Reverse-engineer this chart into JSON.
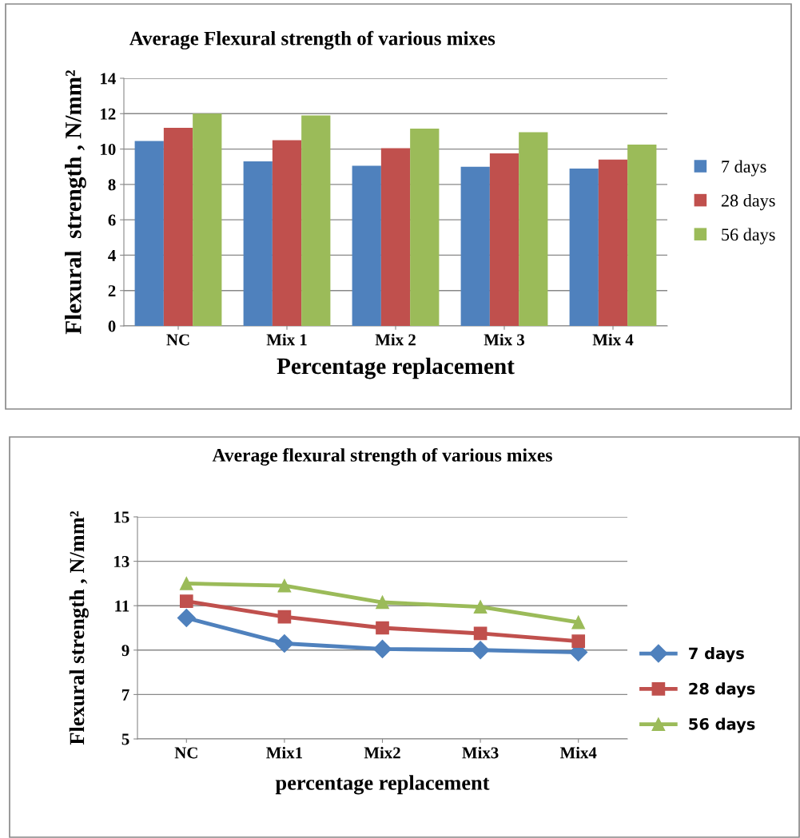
{
  "chart_data": [
    {
      "type": "bar",
      "title": "Average Flexural strength of various mixes",
      "xlabel": "Percentage replacement",
      "ylabel": "Flexural  strength , N/mm²",
      "categories": [
        "NC",
        "Mix 1",
        "Mix 2",
        "Mix 3",
        "Mix 4"
      ],
      "series": [
        {
          "name": "7 days",
          "color": "#4f81bd",
          "values": [
            10.45,
            9.3,
            9.05,
            9.0,
            8.9
          ]
        },
        {
          "name": "28 days",
          "color": "#c0504d",
          "values": [
            11.2,
            10.5,
            10.05,
            9.75,
            9.4
          ]
        },
        {
          "name": "56 days",
          "color": "#9bbb59",
          "values": [
            12.0,
            11.9,
            11.15,
            10.95,
            10.25
          ]
        }
      ],
      "ylim": [
        0,
        14
      ],
      "yticks": [
        0,
        2,
        4,
        6,
        8,
        10,
        12,
        14
      ],
      "grid": "y",
      "legend": "right"
    },
    {
      "type": "line",
      "title": "Average flexural strength of various mixes",
      "xlabel": "percentage replacement",
      "ylabel": "Flexural strength , N/mm²",
      "categories": [
        "NC",
        "Mix1",
        "Mix2",
        "Mix3",
        "Mix4"
      ],
      "series": [
        {
          "name": "7 days",
          "color": "#4f81bd",
          "marker": "diamond",
          "values": [
            10.45,
            9.3,
            9.05,
            9.0,
            8.9
          ]
        },
        {
          "name": "28 days",
          "color": "#c0504d",
          "marker": "square",
          "values": [
            11.2,
            10.5,
            10.0,
            9.75,
            9.4
          ]
        },
        {
          "name": "56 days",
          "color": "#9bbb59",
          "marker": "triangle",
          "values": [
            12.0,
            11.9,
            11.15,
            10.95,
            10.25
          ]
        }
      ],
      "ylim": [
        5,
        15
      ],
      "yticks": [
        5,
        7,
        9,
        11,
        13,
        15
      ],
      "grid": "y",
      "legend": "right",
      "line_style": "solid"
    }
  ]
}
